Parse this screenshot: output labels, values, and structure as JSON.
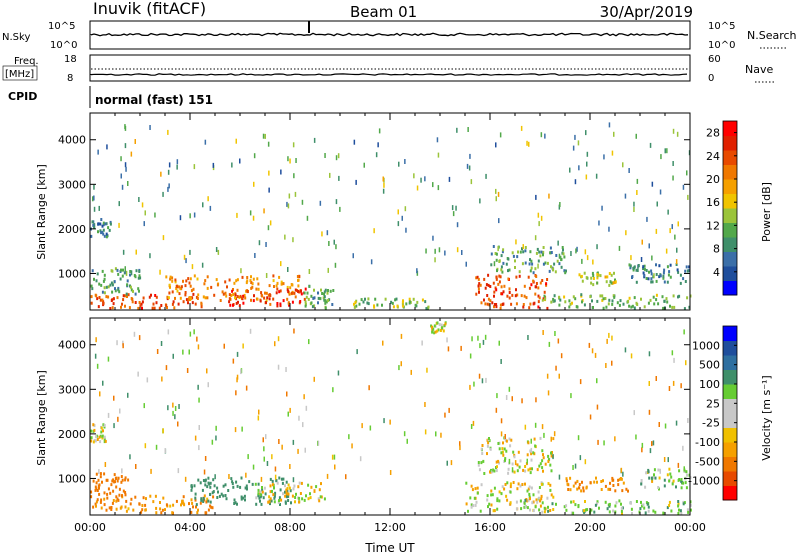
{
  "header": {
    "station": "Inuvik (fitACF)",
    "beam": "Beam 01",
    "date": "30/Apr/2019"
  },
  "panels": {
    "nsky": {
      "left_label": "N.Sky",
      "right_label": "N.Search",
      "left_ticks": [
        "10^5",
        "10^0"
      ],
      "right_ticks": [
        "10^5",
        "10^0"
      ],
      "legend_dotted": true
    },
    "freq": {
      "left_label_1": "Freq.",
      "left_label_2": "[MHz]",
      "right_label": "Nave",
      "left_ticks": [
        "18",
        "8"
      ],
      "right_ticks": [
        "60",
        "0"
      ],
      "legend_dotted": true
    },
    "cpid": {
      "label": "CPID",
      "text": "normal (fast) 151"
    }
  },
  "colors": {
    "power_scale": [
      "#0000ff",
      "#1f4e9c",
      "#3b6fa8",
      "#3f8f6a",
      "#52a84a",
      "#9bc43a",
      "#f0c400",
      "#f5a000",
      "#f07800",
      "#e84a00",
      "#e02000",
      "#ff0000"
    ],
    "velocity_scale": [
      "#ff0000",
      "#e84a00",
      "#f07800",
      "#f5a000",
      "#f0c000",
      "#c8c8c8",
      "#c8c8c8",
      "#66cc33",
      "#3f8f6a",
      "#2e6fa0",
      "#1f4e9c",
      "#0000ff"
    ],
    "ground_scatter": "#c8c8c8"
  },
  "chart_data": [
    {
      "type": "heatmap",
      "name": "power",
      "xlabel": "",
      "ylabel": "Slant Range [km]",
      "yticks": [
        "1000",
        "2000",
        "3000",
        "4000"
      ],
      "ylim": [
        180,
        4600
      ],
      "colorbar": {
        "label": "Power [dB]",
        "ticks": [
          "4",
          "8",
          "12",
          "16",
          "20",
          "24",
          "28"
        ],
        "range": [
          0,
          30
        ]
      },
      "regions": [
        {
          "t0": 0.0,
          "t1": 4.6,
          "r0": 200,
          "r1": 520,
          "v": 24
        },
        {
          "t0": 0.0,
          "t1": 2.0,
          "r0": 520,
          "r1": 1100,
          "v": 10
        },
        {
          "t0": 3.0,
          "t1": 8.5,
          "r0": 380,
          "r1": 950,
          "v": 20
        },
        {
          "t0": 5.5,
          "t1": 8.6,
          "r0": 260,
          "r1": 650,
          "v": 26
        },
        {
          "t0": 8.5,
          "t1": 9.7,
          "r0": 200,
          "r1": 700,
          "v": 10
        },
        {
          "t0": 15.4,
          "t1": 18.3,
          "r0": 200,
          "r1": 950,
          "v": 24
        },
        {
          "t0": 18.0,
          "t1": 24.0,
          "r0": 200,
          "r1": 520,
          "v": 12
        },
        {
          "t0": 0.0,
          "t1": 0.8,
          "r0": 1800,
          "r1": 2200,
          "v": 7
        },
        {
          "t0": 16.0,
          "t1": 19.0,
          "r0": 1000,
          "r1": 1600,
          "v": 10
        },
        {
          "t0": 19.5,
          "t1": 21.0,
          "r0": 700,
          "r1": 1000,
          "v": 14
        },
        {
          "t0": 21.5,
          "t1": 24.0,
          "r0": 750,
          "r1": 1200,
          "v": 7
        },
        {
          "t0": 10.5,
          "t1": 13.5,
          "r0": 200,
          "r1": 420,
          "v": 12
        }
      ]
    },
    {
      "type": "heatmap",
      "name": "velocity",
      "xlabel": "Time UT",
      "ylabel": "Slant Range [km]",
      "xticks": [
        "00:00",
        "04:00",
        "08:00",
        "12:00",
        "16:00",
        "20:00",
        "00:00"
      ],
      "xlim": [
        0,
        24
      ],
      "yticks": [
        "1000",
        "2000",
        "3000",
        "4000"
      ],
      "ylim": [
        180,
        4600
      ],
      "colorbar": {
        "label": "Velocity [m s⁻¹]",
        "ticks": [
          "-1000",
          "-500",
          "-100",
          "-25",
          "25",
          "100",
          "500",
          "1000"
        ]
      },
      "regions": [
        {
          "t0": 0.0,
          "t1": 5.0,
          "r0": 200,
          "r1": 600,
          "v": -100
        },
        {
          "t0": 0.0,
          "t1": 1.5,
          "r0": 600,
          "r1": 1100,
          "v": -400
        },
        {
          "t0": 4.0,
          "t1": 8.0,
          "r0": 400,
          "r1": 1000,
          "v": 300
        },
        {
          "t0": 6.5,
          "t1": 9.5,
          "r0": 450,
          "r1": 900,
          "v": 0
        },
        {
          "t0": 15.0,
          "t1": 18.5,
          "r0": 250,
          "r1": 900,
          "v": 0
        },
        {
          "t0": 17.0,
          "t1": 24.0,
          "r0": 200,
          "r1": 500,
          "v": 60
        },
        {
          "t0": 19.0,
          "t1": 21.5,
          "r0": 700,
          "r1": 1000,
          "v": -100
        },
        {
          "t0": 0.0,
          "t1": 0.6,
          "r0": 1800,
          "r1": 2200,
          "v": 0
        },
        {
          "t0": 15.5,
          "t1": 18.5,
          "r0": 1100,
          "r1": 1900,
          "v": 0
        },
        {
          "t0": 22.0,
          "t1": 24.0,
          "r0": 750,
          "r1": 1200,
          "v": 50
        },
        {
          "t0": 13.5,
          "t1": 14.2,
          "r0": 4250,
          "r1": 4500,
          "v": 0
        }
      ]
    }
  ]
}
